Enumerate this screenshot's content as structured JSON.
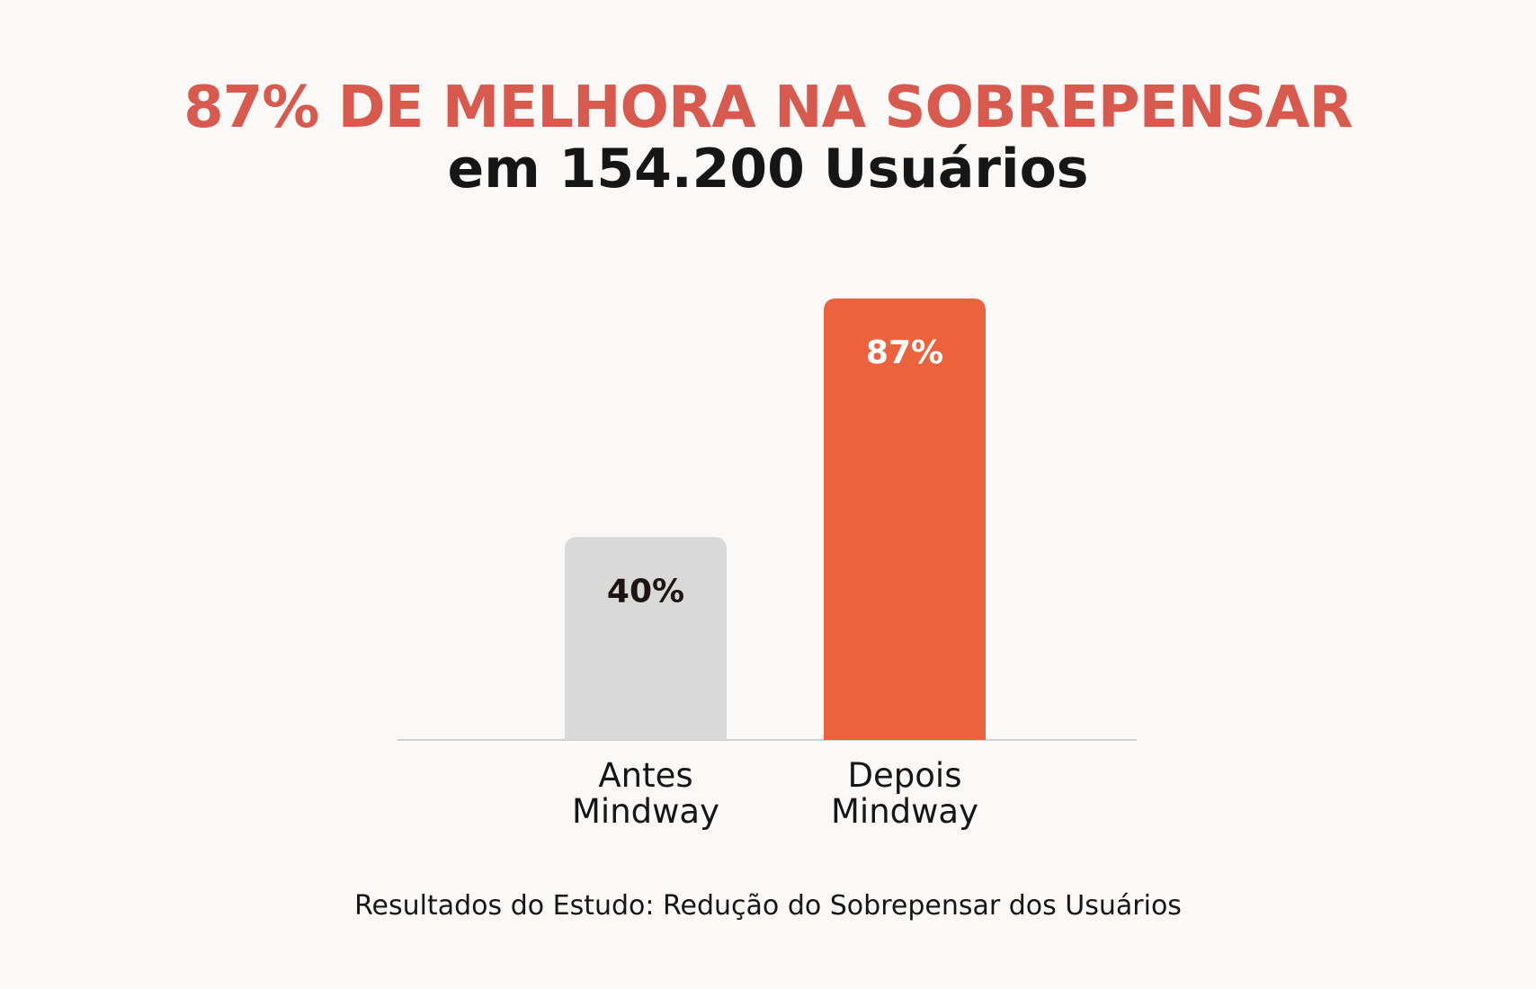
{
  "colors": {
    "background": "#faf9f7",
    "title": "#d85a4f",
    "bar_before": "#d9d9d9",
    "bar_after": "#eb623c",
    "value_before": "#1c1512",
    "value_after": "#ffffff",
    "baseline": "#cfcfcf"
  },
  "chart_data": {
    "type": "bar",
    "title": "87% DE MELHORA NA SOBREPENSAR",
    "subtitle": "em 154.200 Usuários",
    "categories": [
      [
        "Antes",
        "Mindway"
      ],
      [
        "Depois",
        "Mindway"
      ]
    ],
    "values": [
      40,
      87
    ],
    "value_labels": [
      "40%",
      "87%"
    ],
    "ylim": [
      0,
      87
    ],
    "grid": false,
    "legend": "none",
    "caption": "Resultados do Estudo: Redução do Sobrepensar dos Usuários"
  }
}
